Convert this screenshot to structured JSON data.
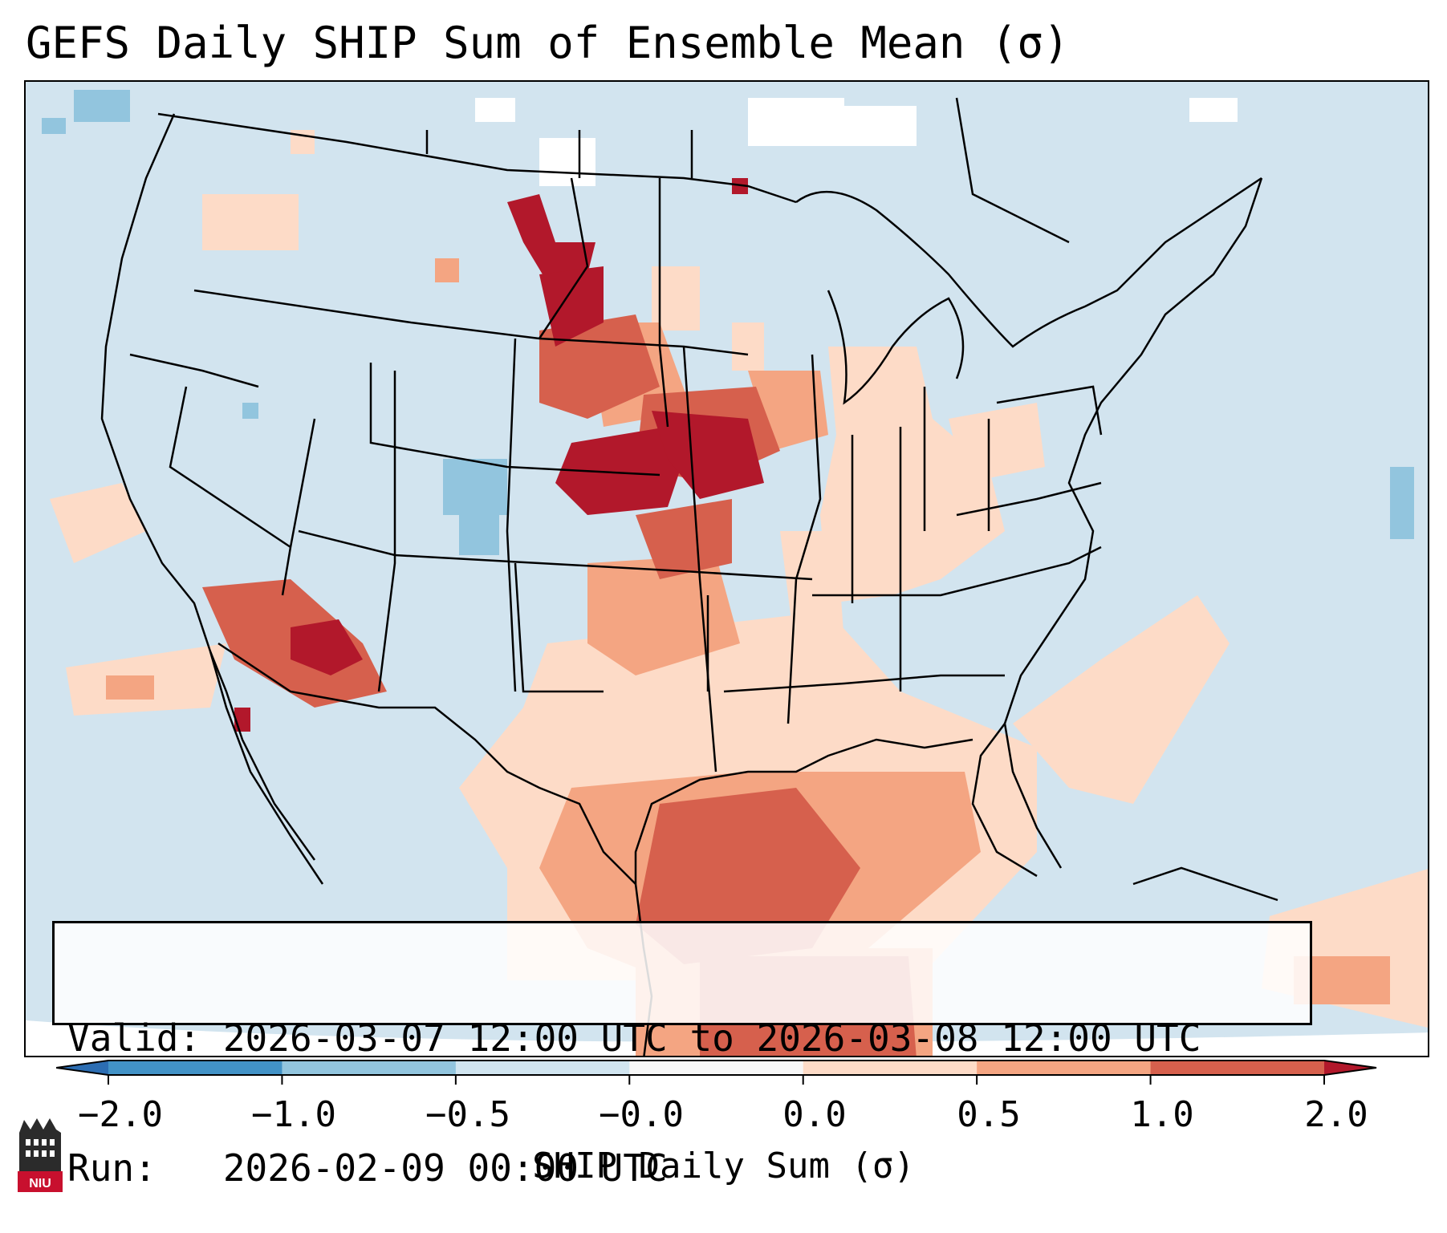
{
  "title": "GEFS Daily SHIP Sum of Ensemble Mean (σ)",
  "info": {
    "valid_line": "Valid: 2026-03-07 12:00 UTC to 2026-03-08 12:00 UTC",
    "run_line": "Run:   2026-02-09 00:00 UTC"
  },
  "colorbar": {
    "label": "SHIP Daily Sum (σ)",
    "ticks": [
      "−2.0",
      "−1.0",
      "−0.5",
      "−0.0",
      "0.0",
      "0.5",
      "1.0",
      "2.0"
    ],
    "bins": [
      {
        "from": "-inf",
        "to": -2.0,
        "color": "#2c6db2"
      },
      {
        "from": -2.0,
        "to": -1.0,
        "color": "#4292c6"
      },
      {
        "from": -1.0,
        "to": -0.5,
        "color": "#92c5de"
      },
      {
        "from": -0.5,
        "to": -0.0,
        "color": "#d1e5f0"
      },
      {
        "from": -0.0,
        "to": 0.0,
        "color": "#f7f7f7"
      },
      {
        "from": 0.0,
        "to": 0.5,
        "color": "#fddbc7"
      },
      {
        "from": 0.5,
        "to": 1.0,
        "color": "#f4a582"
      },
      {
        "from": 1.0,
        "to": 2.0,
        "color": "#d6604d"
      },
      {
        "from": 2.0,
        "to": "inf",
        "color": "#b2182b"
      }
    ]
  },
  "map": {
    "region": "Contiguous United States",
    "projection": "Lambert conformal",
    "background_color": "#d2e4ef",
    "feature_color": "#000000"
  },
  "logo": {
    "text": "NIU",
    "name": "niu-logo"
  }
}
